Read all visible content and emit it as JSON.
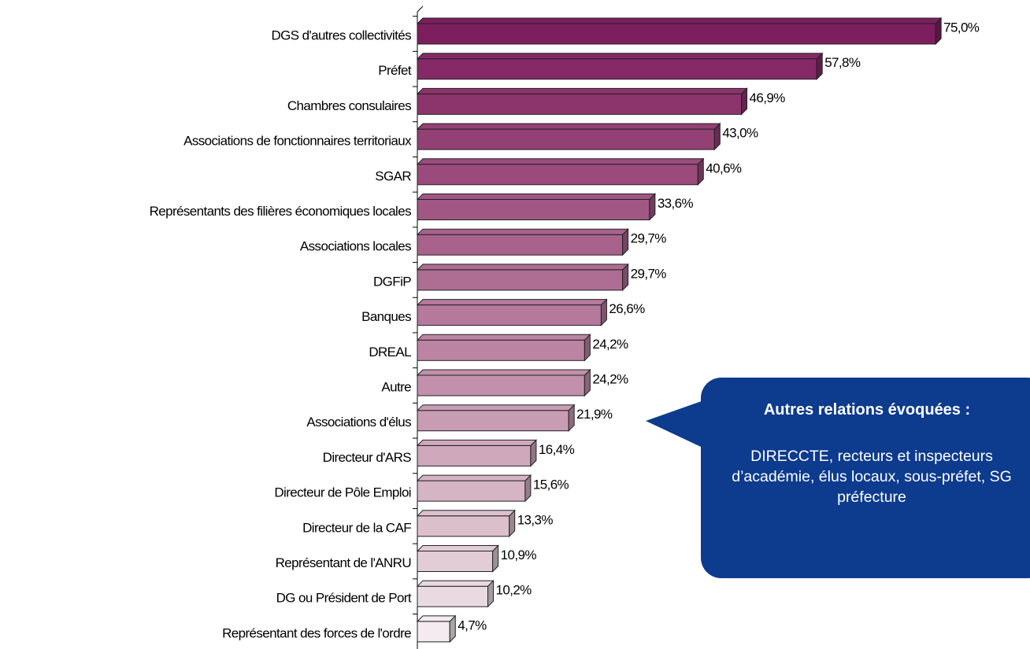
{
  "chart_data": {
    "type": "bar",
    "orientation": "horizontal",
    "categories": [
      "DGS d'autres collectivités",
      "Préfet",
      "Chambres consulaires",
      "Associations de fonctionnaires territoriaux",
      "SGAR",
      "Représentants des filières économiques locales",
      "Associations locales",
      "DGFiP",
      "Banques",
      "DREAL",
      "Autre",
      "Associations d'élus",
      "Directeur d'ARS",
      "Directeur de Pôle Emploi",
      "Directeur de la CAF",
      "Représentant de l'ANRU",
      "DG ou Président de Port",
      "Représentant des forces de l'ordre"
    ],
    "values": [
      75.0,
      57.8,
      46.9,
      43.0,
      40.6,
      33.6,
      29.7,
      29.7,
      26.6,
      24.2,
      24.2,
      21.9,
      16.4,
      15.6,
      13.3,
      10.9,
      10.2,
      4.7
    ],
    "value_labels": [
      "75,0%",
      "57,8%",
      "46,9%",
      "43,0%",
      "40,6%",
      "33,6%",
      "29,7%",
      "29,7%",
      "26,6%",
      "24,2%",
      "24,2%",
      "21,9%",
      "16,4%",
      "15,6%",
      "13,3%",
      "10,9%",
      "10,2%",
      "4,7%"
    ],
    "colors": [
      "#7d1f5e",
      "#852a66",
      "#8c356d",
      "#934075",
      "#9a4b7c",
      "#a15784",
      "#a8628c",
      "#ae6d93",
      "#b5799b",
      "#bc84a3",
      "#c290ab",
      "#c89cb3",
      "#cfa8bc",
      "#d5b4c4",
      "#dbc0cc",
      "#e2cdd6",
      "#e9dae1",
      "#f3ebef"
    ],
    "xlim": [
      0,
      80
    ],
    "annotation": {
      "title": "Autres relations évoquées :",
      "text": "DIRECCTE, recteurs et inspecteurs d’académie, élus locaux, sous-préfet, SG préfecture"
    }
  }
}
